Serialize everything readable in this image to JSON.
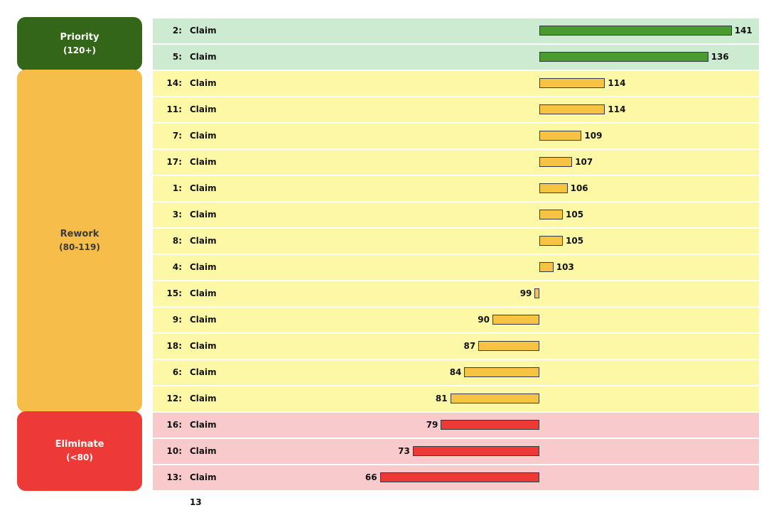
{
  "chart_data": {
    "type": "bar",
    "orientation": "horizontal",
    "baseline": 100,
    "groups": [
      {
        "name": "Priority",
        "range": "(120+)",
        "color": "#336619",
        "row_color": "#cdebd0",
        "bar_color": "#4a9a30",
        "text_color": "#ffffff"
      },
      {
        "name": "Rework",
        "range": "(80-119)",
        "color": "#f6be48",
        "row_color": "#fdf8a5",
        "bar_color": "#f6c342",
        "text_color": "#3a3a3a"
      },
      {
        "name": "Eliminate",
        "range": "(<80)",
        "color": "#ee3a36",
        "row_color": "#f8cacc",
        "bar_color": "#ee3a36",
        "text_color": "#ffffff"
      }
    ],
    "items": [
      {
        "id": "2:",
        "label": "Claim 2",
        "value": 141,
        "group": 0
      },
      {
        "id": "5:",
        "label": "Claim 5",
        "value": 136,
        "group": 0
      },
      {
        "id": "14:",
        "label": "Claim 14",
        "value": 114,
        "group": 1
      },
      {
        "id": "11:",
        "label": "Claim 11",
        "value": 114,
        "group": 1
      },
      {
        "id": "7:",
        "label": "Claim 7",
        "value": 109,
        "group": 1
      },
      {
        "id": "17:",
        "label": "Claim 17",
        "value": 107,
        "group": 1
      },
      {
        "id": "1:",
        "label": "Claim 1",
        "value": 106,
        "group": 1
      },
      {
        "id": "3:",
        "label": "Claim 3",
        "value": 105,
        "group": 1
      },
      {
        "id": "8:",
        "label": "Claim 8",
        "value": 105,
        "group": 1
      },
      {
        "id": "4:",
        "label": "Claim 4",
        "value": 103,
        "group": 1
      },
      {
        "id": "15:",
        "label": "Claim 15",
        "value": 99,
        "group": 1
      },
      {
        "id": "9:",
        "label": "Claim 9",
        "value": 90,
        "group": 1
      },
      {
        "id": "18:",
        "label": "Claim 18",
        "value": 87,
        "group": 1
      },
      {
        "id": "6:",
        "label": "Claim 6",
        "value": 84,
        "group": 1
      },
      {
        "id": "12:",
        "label": "Claim 12",
        "value": 81,
        "group": 1
      },
      {
        "id": "16:",
        "label": "Claim 16",
        "value": 79,
        "group": 2
      },
      {
        "id": "10:",
        "label": "Claim 10",
        "value": 73,
        "group": 2
      },
      {
        "id": "13:",
        "label": "Claim 13",
        "value": 66,
        "group": 2
      }
    ]
  }
}
